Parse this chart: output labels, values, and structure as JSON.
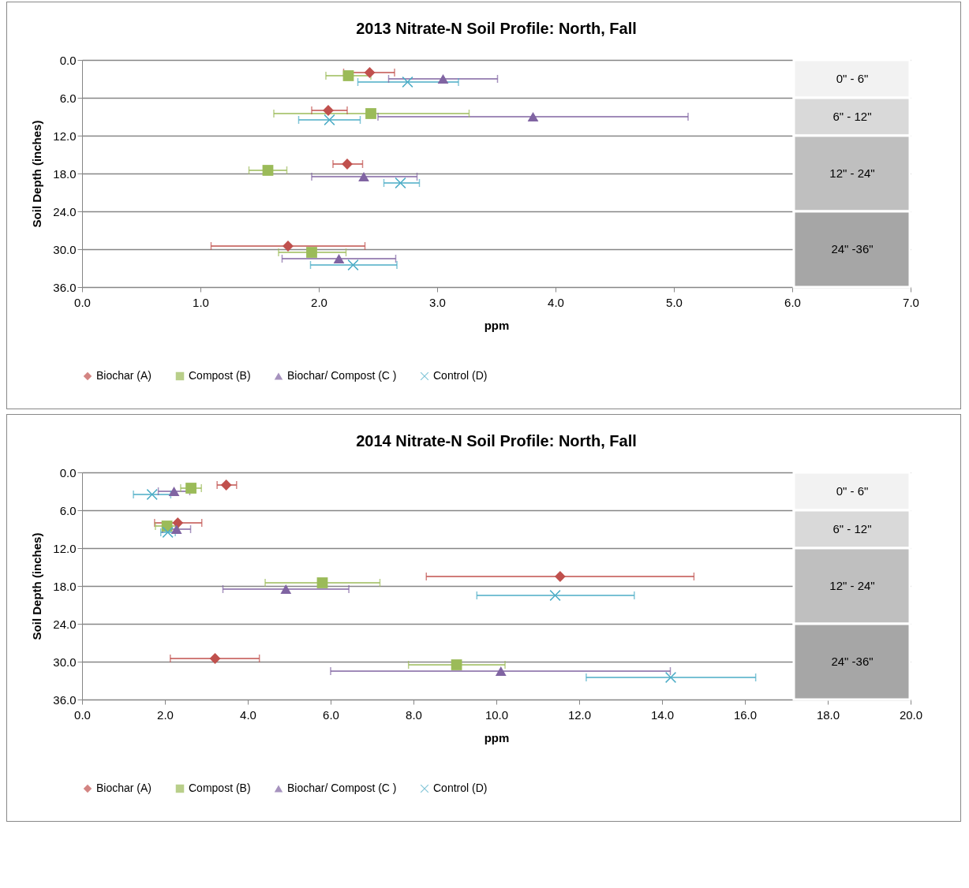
{
  "chart_data": [
    {
      "type": "scatter",
      "title": "2013 Nitrate-N Soil Profile: North, Fall",
      "xlabel": "ppm",
      "ylabel": "Soil Depth (inches)",
      "xlim": [
        0,
        7
      ],
      "xticks": [
        {
          "value": 0,
          "label": "0.0"
        },
        {
          "value": 1,
          "label": "1.0"
        },
        {
          "value": 2,
          "label": "2.0"
        },
        {
          "value": 3,
          "label": "3.0"
        },
        {
          "value": 4,
          "label": "4.0"
        },
        {
          "value": 5,
          "label": "5.0"
        },
        {
          "value": 6,
          "label": "6.0"
        },
        {
          "value": 7,
          "label": "7.0"
        }
      ],
      "ylim": [
        36,
        0
      ],
      "yticks": [
        {
          "value": 0,
          "label": "0.0"
        },
        {
          "value": 6,
          "label": "6.0"
        },
        {
          "value": 12,
          "label": "12.0"
        },
        {
          "value": 18,
          "label": "18.0"
        },
        {
          "value": 24,
          "label": "24.0"
        },
        {
          "value": 30,
          "label": "30.0"
        },
        {
          "value": 36,
          "label": "36.0"
        }
      ],
      "grid": "y",
      "legend": "bottom",
      "bands": [
        {
          "axis": "y",
          "from": 0,
          "to": 6,
          "label": "0\" - 6\"",
          "color": "#f2f2f2"
        },
        {
          "axis": "y",
          "from": 6,
          "to": 12,
          "label": "6\" - 12\"",
          "color": "#d9d9d9"
        },
        {
          "axis": "y",
          "from": 12,
          "to": 24,
          "label": "12\" - 24\"",
          "color": "#bfbfbf"
        },
        {
          "axis": "y",
          "from": 24,
          "to": 36,
          "label": "24\" -36\"",
          "color": "#a6a6a6"
        }
      ],
      "series": [
        {
          "name": "Biochar (A)",
          "color": "#c0504d",
          "marker": "diamond",
          "x": [
            2.43,
            2.08,
            2.24,
            1.74
          ],
          "values": [
            2,
            8,
            16.5,
            29.5
          ],
          "xerrors": [
            [
              2.21,
              2.64
            ],
            [
              1.94,
              2.24
            ],
            [
              2.12,
              2.37
            ],
            [
              1.09,
              2.39
            ]
          ]
        },
        {
          "name": "Compost (B)",
          "color": "#9bbb59",
          "marker": "square",
          "x": [
            2.25,
            2.44,
            1.57,
            1.94
          ],
          "values": [
            2.5,
            8.5,
            17.5,
            30.5
          ],
          "xerrors": [
            [
              2.06,
              2.44
            ],
            [
              1.62,
              3.27
            ],
            [
              1.41,
              1.73
            ],
            [
              1.66,
              2.23
            ]
          ]
        },
        {
          "name": "Biochar/ Compost (C )",
          "color": "#8064a2",
          "marker": "triangle",
          "x": [
            3.05,
            3.81,
            2.38,
            2.17
          ],
          "values": [
            3,
            9,
            18.5,
            31.5
          ],
          "xerrors": [
            [
              2.59,
              3.51
            ],
            [
              2.5,
              5.12
            ],
            [
              1.94,
              2.83
            ],
            [
              1.69,
              2.65
            ]
          ]
        },
        {
          "name": "Control (D)",
          "color": "#4bacc6",
          "marker": "cross",
          "x": [
            2.75,
            2.09,
            2.69,
            2.29
          ],
          "values": [
            3.5,
            9.5,
            19.5,
            32.5
          ],
          "xerrors": [
            [
              2.33,
              3.18
            ],
            [
              1.83,
              2.35
            ],
            [
              2.55,
              2.85
            ],
            [
              1.93,
              2.66
            ]
          ]
        }
      ]
    },
    {
      "type": "scatter",
      "title": "2014 Nitrate-N Soil Profile: North, Fall",
      "xlabel": "ppm",
      "ylabel": "Soil Depth (inches)",
      "xlim": [
        0,
        20
      ],
      "xticks": [
        {
          "value": 0,
          "label": "0.0"
        },
        {
          "value": 2,
          "label": "2.0"
        },
        {
          "value": 4,
          "label": "4.0"
        },
        {
          "value": 6,
          "label": "6.0"
        },
        {
          "value": 8,
          "label": "8.0"
        },
        {
          "value": 10,
          "label": "10.0"
        },
        {
          "value": 12,
          "label": "12.0"
        },
        {
          "value": 14,
          "label": "14.0"
        },
        {
          "value": 16,
          "label": "16.0"
        },
        {
          "value": 18,
          "label": "18.0"
        },
        {
          "value": 20,
          "label": "20.0"
        }
      ],
      "ylim": [
        36,
        0
      ],
      "yticks": [
        {
          "value": 0,
          "label": "0.0"
        },
        {
          "value": 6,
          "label": "6.0"
        },
        {
          "value": 12,
          "label": "12.0"
        },
        {
          "value": 18,
          "label": "18.0"
        },
        {
          "value": 24,
          "label": "24.0"
        },
        {
          "value": 30,
          "label": "30.0"
        },
        {
          "value": 36,
          "label": "36.0"
        }
      ],
      "grid": "y",
      "legend": "bottom",
      "bands": [
        {
          "axis": "y",
          "from": 0,
          "to": 6,
          "label": "0\" - 6\"",
          "color": "#f2f2f2"
        },
        {
          "axis": "y",
          "from": 6,
          "to": 12,
          "label": "6\" - 12\"",
          "color": "#d9d9d9"
        },
        {
          "axis": "y",
          "from": 12,
          "to": 24,
          "label": "12\" - 24\"",
          "color": "#bfbfbf"
        },
        {
          "axis": "y",
          "from": 24,
          "to": 36,
          "label": "24\" -36\"",
          "color": "#a6a6a6"
        }
      ],
      "series": [
        {
          "name": "Biochar (A)",
          "color": "#c0504d",
          "marker": "diamond",
          "x": [
            3.48,
            2.31,
            11.54,
            3.21
          ],
          "values": [
            2,
            8,
            16.5,
            29.5
          ],
          "xerrors": [
            [
              3.26,
              3.73
            ],
            [
              1.75,
              2.89
            ],
            [
              8.31,
              14.77
            ],
            [
              2.13,
              4.28
            ]
          ]
        },
        {
          "name": "Compost (B)",
          "color": "#9bbb59",
          "marker": "square",
          "x": [
            2.63,
            2.05,
            5.8,
            9.04
          ],
          "values": [
            2.5,
            8.5,
            17.5,
            30.5
          ],
          "xerrors": [
            [
              2.38,
              2.88
            ],
            [
              1.77,
              2.33
            ],
            [
              4.42,
              7.19
            ],
            [
              7.88,
              10.21
            ]
          ]
        },
        {
          "name": "Biochar/ Compost (C )",
          "color": "#8064a2",
          "marker": "triangle",
          "x": [
            2.22,
            2.28,
            4.92,
            10.11
          ],
          "values": [
            3,
            9,
            18.5,
            31.5
          ],
          "xerrors": [
            [
              1.84,
              2.6
            ],
            [
              1.94,
              2.62
            ],
            [
              3.4,
              6.44
            ],
            [
              6.0,
              14.2
            ]
          ]
        },
        {
          "name": "Control (D)",
          "color": "#4bacc6",
          "marker": "cross",
          "x": [
            1.69,
            2.07,
            11.42,
            14.21
          ],
          "values": [
            3.5,
            9.5,
            19.5,
            32.5
          ],
          "xerrors": [
            [
              1.24,
              2.14
            ],
            [
              1.9,
              2.25
            ],
            [
              9.53,
              13.33
            ],
            [
              12.17,
              16.26
            ]
          ]
        }
      ]
    }
  ]
}
